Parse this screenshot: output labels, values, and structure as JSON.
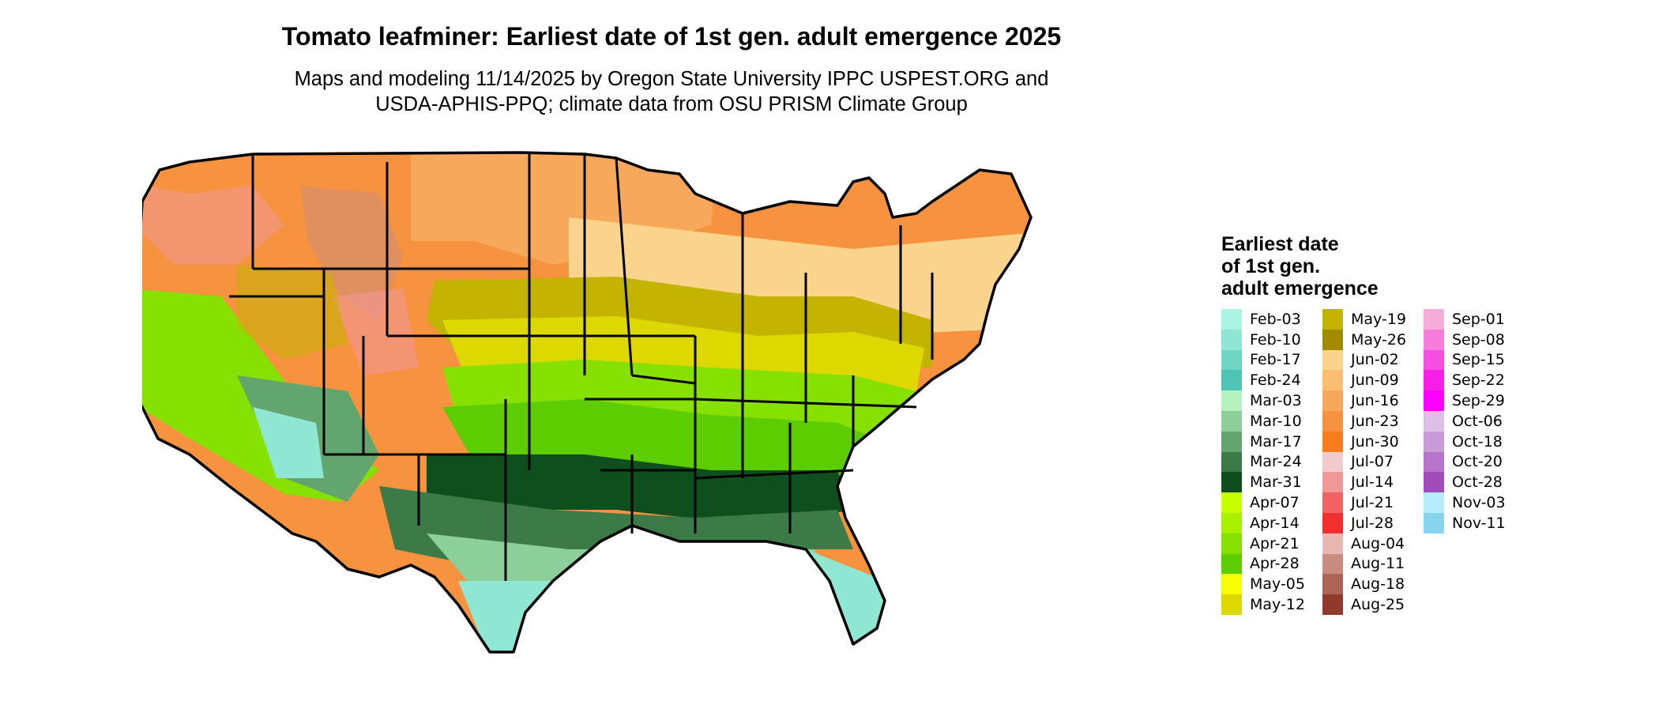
{
  "title": "Tomato leafminer: Earliest date of 1st gen. adult emergence 2025",
  "subtitle_line1": "Maps and modeling 11/14/2025 by Oregon State University IPPC USPEST.ORG and",
  "subtitle_line2": "USDA-APHIS-PPQ; climate data from OSU PRISM Climate Group",
  "legend": {
    "title_lines": [
      "Earliest date",
      "of 1st gen.",
      "adult emergence"
    ],
    "columns": [
      [
        {
          "label": "Feb-03",
          "color": "#a8f5e2"
        },
        {
          "label": "Feb-10",
          "color": "#8fe6d2"
        },
        {
          "label": "Feb-17",
          "color": "#6fd6c4"
        },
        {
          "label": "Feb-24",
          "color": "#4fc4b4"
        },
        {
          "label": "Mar-03",
          "color": "#b6f2c0"
        },
        {
          "label": "Mar-10",
          "color": "#8ccf9a"
        },
        {
          "label": "Mar-17",
          "color": "#63a56e"
        },
        {
          "label": "Mar-24",
          "color": "#3c7a48"
        },
        {
          "label": "Mar-31",
          "color": "#0f4f1e"
        },
        {
          "label": "Apr-07",
          "color": "#c8ff00"
        },
        {
          "label": "Apr-14",
          "color": "#a8ef00"
        },
        {
          "label": "Apr-21",
          "color": "#86e000"
        },
        {
          "label": "Apr-28",
          "color": "#5ccd00"
        },
        {
          "label": "May-05",
          "color": "#f5ff00"
        },
        {
          "label": "May-12",
          "color": "#ddd800"
        }
      ],
      [
        {
          "label": "May-19",
          "color": "#c2b400"
        },
        {
          "label": "May-26",
          "color": "#a08a00"
        },
        {
          "label": "Jun-02",
          "color": "#fad48c"
        },
        {
          "label": "Jun-09",
          "color": "#f9be74"
        },
        {
          "label": "Jun-16",
          "color": "#f8a85a"
        },
        {
          "label": "Jun-23",
          "color": "#f7923e"
        },
        {
          "label": "Jun-30",
          "color": "#f67c1e"
        },
        {
          "label": "Jul-07",
          "color": "#f2cccc"
        },
        {
          "label": "Jul-14",
          "color": "#f09898"
        },
        {
          "label": "Jul-21",
          "color": "#f26464"
        },
        {
          "label": "Jul-28",
          "color": "#f22e2e"
        },
        {
          "label": "Aug-04",
          "color": "#e8b8b0"
        },
        {
          "label": "Aug-11",
          "color": "#c98c80"
        },
        {
          "label": "Aug-18",
          "color": "#ad6456"
        },
        {
          "label": "Aug-25",
          "color": "#8f3a2a"
        }
      ],
      [
        {
          "label": "Sep-01",
          "color": "#f5acd8"
        },
        {
          "label": "Sep-08",
          "color": "#f67ddc"
        },
        {
          "label": "Sep-15",
          "color": "#f64ee0"
        },
        {
          "label": "Sep-22",
          "color": "#f71fe5"
        },
        {
          "label": "Sep-29",
          "color": "#ff00ff"
        },
        {
          "label": "Oct-06",
          "color": "#dcc0e6"
        },
        {
          "label": "Oct-18",
          "color": "#c89ad8"
        },
        {
          "label": "Oct-20",
          "color": "#b674ca"
        },
        {
          "label": "Oct-28",
          "color": "#a24cbc"
        },
        {
          "label": "Nov-03",
          "color": "#b6ecfa"
        },
        {
          "label": "Nov-11",
          "color": "#86d4ee"
        }
      ]
    ]
  },
  "map_colors": {
    "orange": "#f7923e",
    "light_orange": "#fad48c",
    "olive": "#c2b400",
    "yellow_green": "#ddd800",
    "lime": "#86e000",
    "dark_green": "#0f4f1e",
    "mid_green": "#63a56e",
    "light_green": "#8ccf9a",
    "mint": "#8fe6d2",
    "teal": "#4fc4b4",
    "pink": "#f09898",
    "border": "#000000"
  }
}
